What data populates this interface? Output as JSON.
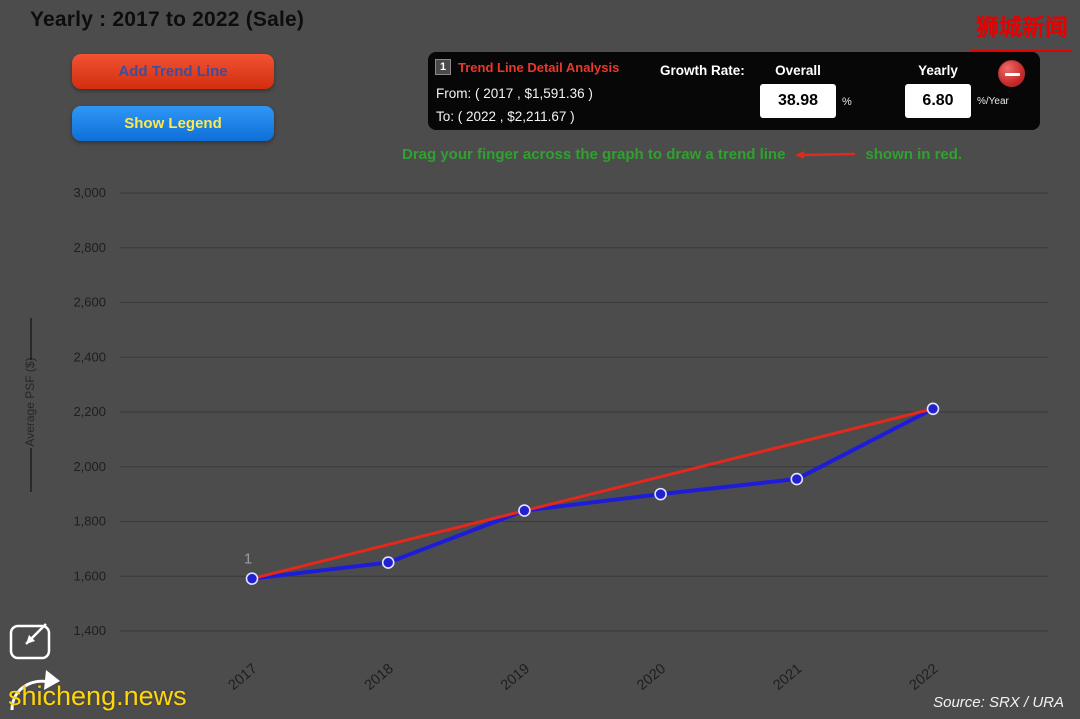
{
  "header": {
    "title": "Yearly : 2017 to 2022 (Sale)",
    "watermark_cn": "狮城新闻"
  },
  "toolbar": {
    "add_trend_line_label": "Add Trend Line",
    "show_legend_label": "Show Legend"
  },
  "analysis_panel": {
    "badge": "1",
    "title": "Trend Line Detail Analysis",
    "from_line": "From: ( 2017 , $1,591.36 )",
    "to_line": "To: ( 2022 , $2,211.67 )",
    "growth_rate_label": "Growth Rate:",
    "overall_label": "Overall",
    "overall_value": "38.98",
    "overall_unit": "%",
    "yearly_label": "Yearly",
    "yearly_value": "6.80",
    "yearly_unit": "%/Year"
  },
  "instruction": {
    "before": "Drag your finger across the graph to draw a trend line",
    "after": "shown in red."
  },
  "chart_data": {
    "type": "line",
    "x": [
      "2017",
      "2018",
      "2019",
      "2020",
      "2021",
      "2022"
    ],
    "series": [
      {
        "name": "Average PSF",
        "color": "#1d1cd8",
        "values": [
          1591.36,
          1650,
          1840,
          1900,
          1955,
          2211.67
        ]
      },
      {
        "name": "Trend Line",
        "color": "#e3281c",
        "values": [
          1591.36,
          2211.67
        ],
        "x_indices": [
          0,
          5
        ]
      }
    ],
    "ylabel": "Average PSF ($)",
    "ylim": [
      1400,
      3000
    ],
    "ytick_step": 200,
    "grid": "horizontal",
    "legend": "hidden",
    "annotations": [
      {
        "text": "1",
        "x_index": 0,
        "y": 1662
      }
    ]
  },
  "footer": {
    "watermark": "shicheng.news",
    "source": "Source: SRX / URA"
  },
  "colors": {
    "background": "#4d4c4d",
    "accent_red": "#e3281c",
    "accent_blue": "#1d1cd8",
    "instruction_green": "#2fa12f",
    "panel_bg": "#070707"
  }
}
